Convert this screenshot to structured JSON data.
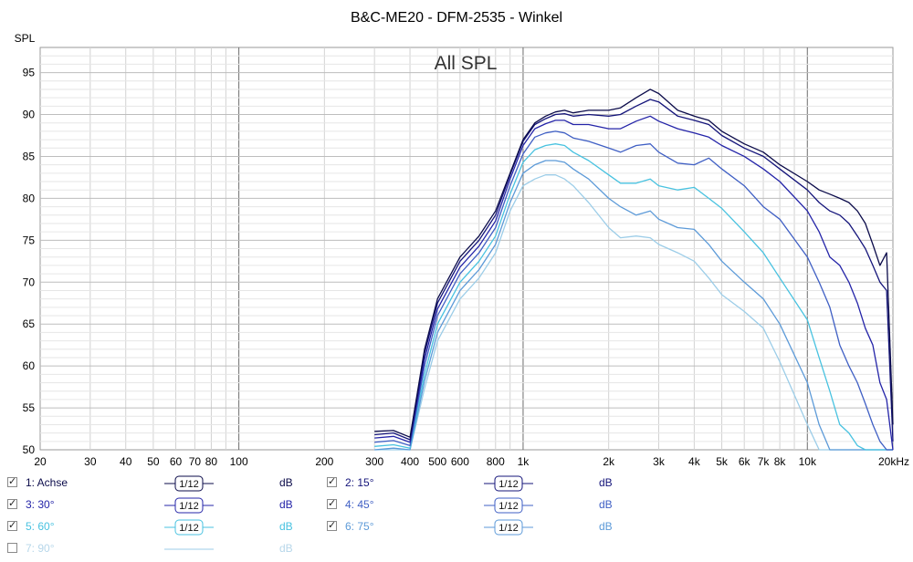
{
  "chart_data": {
    "type": "line",
    "title": "B&C-ME20 - DFM-2535 - Winkel",
    "plot_label": "All SPL",
    "ylabel": "SPL",
    "xscale": "log",
    "xlim": [
      20,
      20000
    ],
    "ylim": [
      50,
      98
    ],
    "yticks": [
      50,
      55,
      60,
      65,
      70,
      75,
      80,
      85,
      90,
      95
    ],
    "xtick_values": [
      20,
      30,
      40,
      50,
      60,
      70,
      80,
      100,
      200,
      300,
      400,
      500,
      600,
      800,
      1000,
      2000,
      3000,
      4000,
      5000,
      6000,
      7000,
      8000,
      10000,
      20000
    ],
    "xtick_labels": [
      "20",
      "30",
      "40",
      "50",
      "60",
      "70",
      "80",
      "100",
      "200",
      "300",
      "400",
      "500",
      "600",
      "800",
      "1k",
      "2k",
      "3k",
      "4k",
      "5k",
      "6k",
      "7k",
      "8k",
      "10k",
      "20kHz"
    ],
    "grid": true,
    "x": [
      300,
      350,
      400,
      450,
      500,
      600,
      700,
      800,
      900,
      1000,
      1100,
      1200,
      1300,
      1400,
      1500,
      1700,
      2000,
      2200,
      2500,
      2800,
      3000,
      3500,
      4000,
      4500,
      5000,
      6000,
      7000,
      8000,
      10000,
      11000,
      12000,
      13000,
      14000,
      15000,
      16000,
      17000,
      18000,
      19000,
      20000
    ],
    "series": [
      {
        "name": "1: Achse",
        "color": "#0b0b4a",
        "values": [
          52.2,
          52.3,
          51.5,
          62,
          68,
          73,
          75.5,
          78.5,
          83,
          87,
          89,
          89.8,
          90.3,
          90.5,
          90.2,
          90.5,
          90.5,
          90.8,
          92,
          93,
          92.5,
          90.5,
          89.8,
          89.3,
          88,
          86.5,
          85.5,
          84,
          82,
          81,
          80.5,
          80,
          79.5,
          78.5,
          77,
          74.5,
          72,
          73.5,
          53
        ]
      },
      {
        "name": "2: 15°",
        "color": "#14147a",
        "values": [
          51.8,
          52,
          51.2,
          61.5,
          67.5,
          72.5,
          75,
          78,
          82.8,
          86.8,
          88.8,
          89.5,
          90,
          90.1,
          89.8,
          90,
          89.8,
          90,
          91,
          91.8,
          91.5,
          89.8,
          89.3,
          88.8,
          87.5,
          86,
          85,
          83.5,
          81,
          79.5,
          78.5,
          78,
          77,
          75.5,
          74,
          72,
          70,
          69,
          51
        ]
      },
      {
        "name": "3: 30°",
        "color": "#2424a8",
        "values": [
          51.4,
          51.6,
          50.9,
          60.8,
          66.8,
          71.8,
          74.3,
          77.3,
          82.3,
          86.3,
          88.3,
          88.9,
          89.3,
          89.3,
          88.8,
          88.8,
          88.3,
          88.3,
          89.2,
          89.8,
          89.2,
          88.3,
          87.8,
          87.3,
          86.3,
          85,
          83.5,
          82,
          78.5,
          76,
          73,
          72,
          70,
          67.5,
          64.5,
          62.5,
          58,
          56,
          50
        ]
      },
      {
        "name": "4: 45°",
        "color": "#3f5fc4",
        "values": [
          50.9,
          51.1,
          50.5,
          60,
          66,
          71,
          73.5,
          76.5,
          81.5,
          85.3,
          87.3,
          87.8,
          88,
          87.8,
          87.2,
          86.8,
          86,
          85.5,
          86.3,
          86.5,
          85.5,
          84.2,
          84,
          84.8,
          83.5,
          81.5,
          79,
          77.5,
          73,
          70,
          67,
          62.5,
          60,
          58,
          55.5,
          53,
          51,
          50,
          50
        ]
      },
      {
        "name": "5: 60°",
        "color": "#48c2e0",
        "values": [
          50.4,
          50.6,
          50.2,
          59,
          65,
          70,
          72.5,
          75.5,
          80.5,
          84.3,
          85.8,
          86.3,
          86.5,
          86.3,
          85.5,
          84.5,
          82.8,
          81.8,
          81.8,
          82.3,
          81.5,
          81,
          81.3,
          80,
          78.8,
          76,
          73.5,
          70.5,
          65.5,
          61,
          57,
          53,
          52,
          50.5,
          50,
          50,
          50,
          50,
          50
        ]
      },
      {
        "name": "6: 75°",
        "color": "#5c9ad8",
        "values": [
          50,
          50.2,
          50,
          58.2,
          64,
          69,
          71.5,
          74.5,
          79.5,
          83,
          84,
          84.5,
          84.5,
          84.3,
          83.5,
          82.3,
          80,
          79,
          78,
          78.5,
          77.5,
          76.5,
          76.3,
          74.5,
          72.5,
          70,
          68,
          65,
          58,
          53,
          50,
          50,
          50,
          50,
          50,
          50,
          50,
          50,
          50
        ]
      },
      {
        "name": "7: 90°",
        "color": "#9ccde8",
        "values": [
          50,
          50,
          50,
          57.3,
          63,
          68,
          70.5,
          73.5,
          78.5,
          81.5,
          82.3,
          82.8,
          82.8,
          82.3,
          81.5,
          79.5,
          76.5,
          75.3,
          75.5,
          75.3,
          74.5,
          73.5,
          72.5,
          70.5,
          68.5,
          66.5,
          64.5,
          60.5,
          53,
          50,
          50,
          50,
          50,
          50,
          50,
          50,
          50,
          50,
          50
        ]
      }
    ],
    "legend": [
      {
        "label": "1: Achse",
        "smoothing": "1/12",
        "unit": "dB",
        "checked": true,
        "color": "#0b0b4a"
      },
      {
        "label": "2: 15°",
        "smoothing": "1/12",
        "unit": "dB",
        "checked": true,
        "color": "#14147a"
      },
      {
        "label": "3: 30°",
        "smoothing": "1/12",
        "unit": "dB",
        "checked": true,
        "color": "#2424a8"
      },
      {
        "label": "4: 45°",
        "smoothing": "1/12",
        "unit": "dB",
        "checked": true,
        "color": "#3f5fc4"
      },
      {
        "label": "5: 60°",
        "smoothing": "1/12",
        "unit": "dB",
        "checked": true,
        "color": "#48c2e0"
      },
      {
        "label": "6: 75°",
        "smoothing": "1/12",
        "unit": "dB",
        "checked": true,
        "color": "#5c9ad8"
      },
      {
        "label": "7: 90°",
        "smoothing": "",
        "unit": "dB",
        "checked": false,
        "color": "#9ccde8"
      }
    ]
  }
}
